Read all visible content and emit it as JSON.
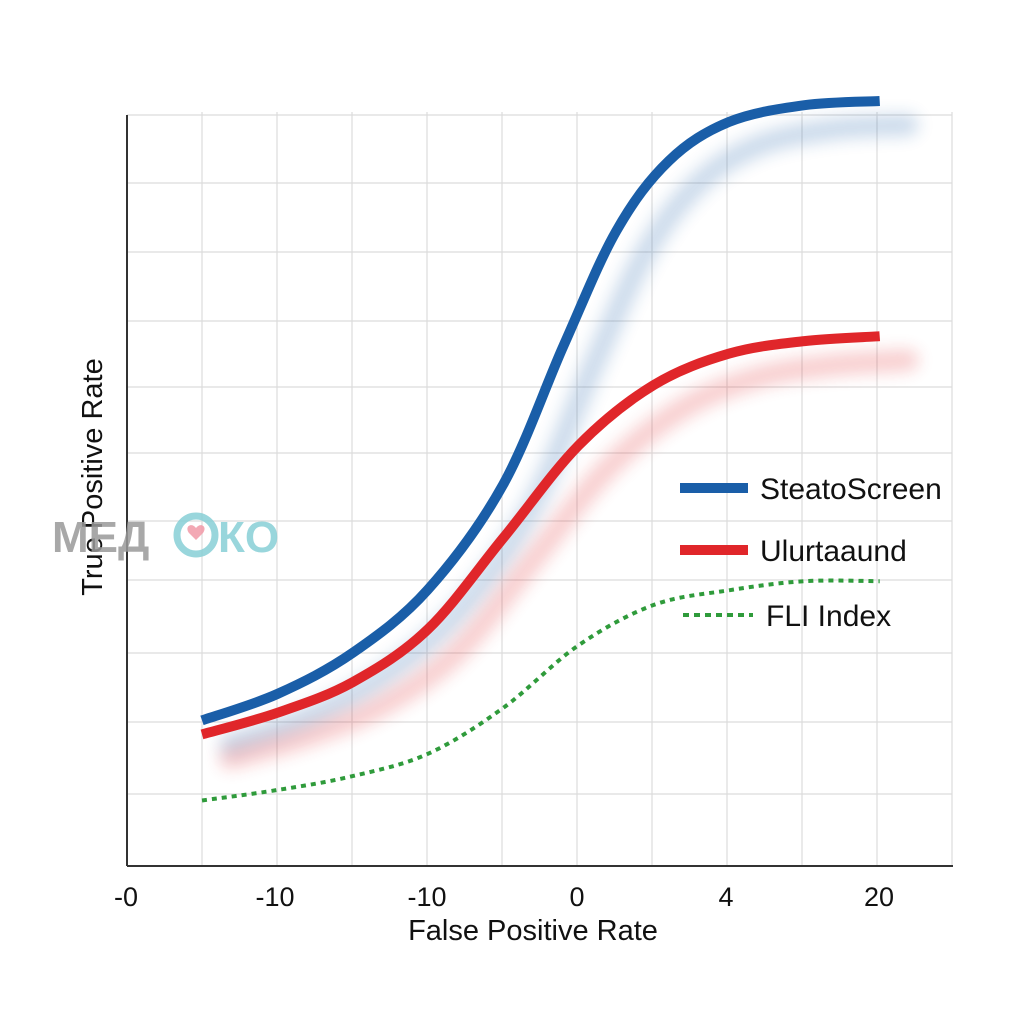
{
  "chart_data": {
    "type": "line",
    "xlabel": "False Positive Rate",
    "ylabel": "True Positive Rate",
    "x_tick_labels": [
      "-0",
      "-10",
      "-10",
      "0",
      "4",
      "20"
    ],
    "grid": true,
    "legend_position": "right",
    "series": [
      {
        "name": "SteatoScreen",
        "color": "#1a5ea8",
        "style": "solid",
        "points": [
          [
            0,
            0.11
          ],
          [
            0.1,
            0.148
          ],
          [
            0.2,
            0.207
          ],
          [
            0.3,
            0.298
          ],
          [
            0.4,
            0.449
          ],
          [
            0.48,
            0.648
          ],
          [
            0.55,
            0.813
          ],
          [
            0.62,
            0.914
          ],
          [
            0.7,
            0.97
          ],
          [
            0.8,
            0.994
          ],
          [
            0.9,
            1.0
          ]
        ]
      },
      {
        "name": "Ulurtaaund",
        "color": "#e0262a",
        "style": "solid",
        "points": [
          [
            0,
            0.09
          ],
          [
            0.1,
            0.121
          ],
          [
            0.2,
            0.165
          ],
          [
            0.3,
            0.241
          ],
          [
            0.4,
            0.372
          ],
          [
            0.5,
            0.505
          ],
          [
            0.6,
            0.592
          ],
          [
            0.7,
            0.637
          ],
          [
            0.8,
            0.655
          ],
          [
            0.9,
            0.662
          ]
        ]
      },
      {
        "name": "FLI Index",
        "color": "#2f9b3b",
        "style": "dotted",
        "points": [
          [
            0,
            -0.005
          ],
          [
            0.1,
            0.01
          ],
          [
            0.2,
            0.03
          ],
          [
            0.3,
            0.062
          ],
          [
            0.4,
            0.128
          ],
          [
            0.5,
            0.218
          ],
          [
            0.6,
            0.276
          ],
          [
            0.7,
            0.297
          ],
          [
            0.8,
            0.31
          ],
          [
            0.9,
            0.31
          ]
        ]
      }
    ]
  },
  "watermark": {
    "text_left": "МЕД",
    "text_right": "КО"
  }
}
